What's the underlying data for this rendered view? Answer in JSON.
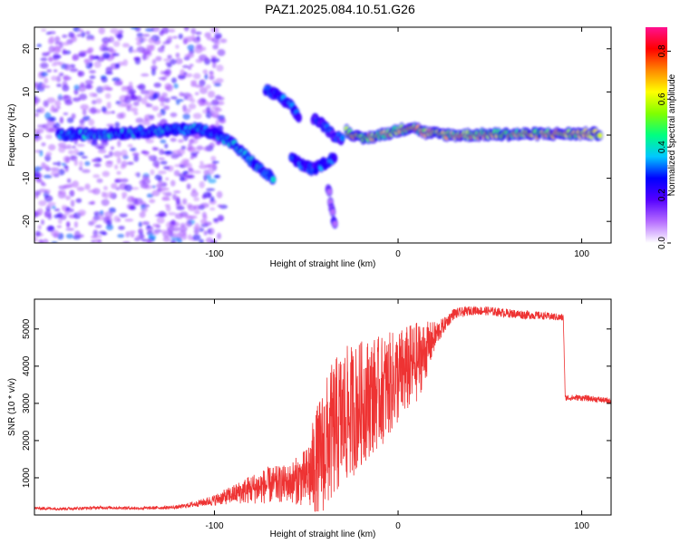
{
  "title": "PAZ1.2025.084.10.51.G26",
  "chart_data": [
    {
      "type": "heatmap",
      "xlabel": "Height of straight line (km)",
      "ylabel": "Frequency (Hz)",
      "xlim": [
        -198,
        116
      ],
      "ylim": [
        -25,
        25
      ],
      "x_ticks": [
        "-100",
        "0",
        "100"
      ],
      "x_tick_values": [
        -100,
        0,
        100
      ],
      "y_ticks": [
        "20",
        "10",
        "0",
        "-10",
        "-20"
      ],
      "y_tick_values": [
        20,
        10,
        0,
        -10,
        -20
      ],
      "colorbar": {
        "label": "Normalized spectral amplitude",
        "range": [
          0,
          0.9
        ],
        "ticks": [
          "0.0",
          "0.2",
          "0.4",
          "0.6",
          "0.8"
        ],
        "tick_values": [
          0.0,
          0.2,
          0.4,
          0.6,
          0.8
        ],
        "colors": [
          "#ffffff",
          "#b56cff",
          "#5500ff",
          "#0000ff",
          "#00c8ff",
          "#00ff80",
          "#80ff00",
          "#ffff00",
          "#ff8800",
          "#ff0000",
          "#ff1090"
        ]
      },
      "tracks": [
        {
          "name": "main",
          "points": [
            [
              -185,
              0
            ],
            [
              -150,
              0.5
            ],
            [
              -130,
              1
            ],
            [
              -110,
              1.5
            ],
            [
              -100,
              0.5
            ],
            [
              -90,
              -2
            ],
            [
              -80,
              -6
            ],
            [
              -72,
              -9
            ],
            [
              -68,
              -10
            ]
          ],
          "intensity": 0.35
        },
        {
          "name": "upper-branch",
          "points": [
            [
              -72,
              10.5
            ],
            [
              -65,
              9
            ],
            [
              -58,
              6.5
            ],
            [
              -54,
              4
            ]
          ],
          "intensity": 0.3
        },
        {
          "name": "descending",
          "points": [
            [
              -58,
              -5
            ],
            [
              -52,
              -7
            ],
            [
              -46,
              -8
            ],
            [
              -40,
              -6.5
            ],
            [
              -34,
              -5
            ]
          ],
          "intensity": 0.3
        },
        {
          "name": "middle",
          "points": [
            [
              -46,
              4
            ],
            [
              -40,
              2
            ],
            [
              -35,
              0
            ],
            [
              -30,
              -1
            ]
          ],
          "intensity": 0.25
        },
        {
          "name": "spike",
          "points": [
            [
              -38,
              -12
            ],
            [
              -36,
              -17
            ],
            [
              -34,
              -22
            ]
          ],
          "intensity": 0.15
        },
        {
          "name": "steady",
          "points": [
            [
              -28,
              1
            ],
            [
              -20,
              -1
            ],
            [
              -10,
              0
            ],
            [
              0,
              1
            ],
            [
              8,
              2
            ],
            [
              15,
              0.5
            ],
            [
              30,
              0
            ],
            [
              60,
              0.2
            ],
            [
              90,
              0.3
            ],
            [
              110,
              0.3
            ]
          ],
          "intensity": 0.65
        }
      ]
    },
    {
      "type": "line",
      "xlabel": "Height of straight line (km)",
      "ylabel": "SNR (10 * v/v)",
      "xlim": [
        -198,
        116
      ],
      "ylim": [
        0,
        5800
      ],
      "x_ticks": [
        "-100",
        "0",
        "100"
      ],
      "x_tick_values": [
        -100,
        0,
        100
      ],
      "y_ticks": [
        "5000",
        "4000",
        "3000",
        "2000",
        "1000"
      ],
      "y_tick_values": [
        5000,
        4000,
        3000,
        2000,
        1000
      ],
      "series": [
        {
          "color": "#ee3333",
          "x": [
            -198,
            -180,
            -160,
            -140,
            -120,
            -110,
            -100,
            -90,
            -80,
            -70,
            -60,
            -50,
            -45,
            -40,
            -35,
            -30,
            -25,
            -20,
            -15,
            -10,
            -5,
            0,
            5,
            10,
            15,
            20,
            25,
            30,
            40,
            50,
            60,
            70,
            80,
            90,
            91,
            100,
            110,
            116
          ],
          "y": [
            180,
            170,
            200,
            180,
            210,
            300,
            400,
            550,
            700,
            800,
            850,
            1000,
            1300,
            1800,
            2300,
            2600,
            2800,
            3000,
            3200,
            3300,
            3500,
            3700,
            3900,
            4100,
            4400,
            4800,
            5100,
            5400,
            5500,
            5480,
            5420,
            5380,
            5350,
            5300,
            3150,
            3150,
            3100,
            3050
          ],
          "noise": [
            40,
            40,
            40,
            40,
            50,
            80,
            150,
            250,
            400,
            500,
            500,
            800,
            1500,
            1800,
            1900,
            1900,
            1800,
            1700,
            1600,
            1500,
            1400,
            1300,
            1200,
            1100,
            800,
            400,
            200,
            150,
            120,
            120,
            120,
            120,
            100,
            100,
            80,
            80,
            80,
            80
          ]
        }
      ]
    }
  ]
}
